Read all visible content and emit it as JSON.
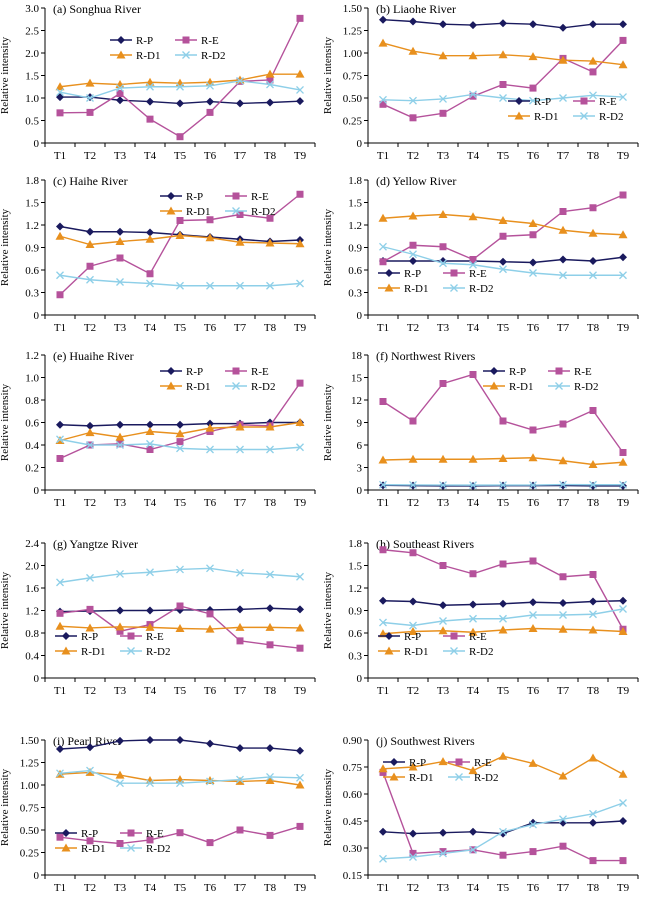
{
  "figure": {
    "ylabel": "Relative intensity",
    "categories": [
      "T1",
      "T2",
      "T3",
      "T4",
      "T5",
      "T6",
      "T7",
      "T8",
      "T9"
    ]
  },
  "colors": {
    "R-P": "#1a1a5e",
    "R-E": "#b5529b",
    "R-D1": "#e8901e",
    "R-D2": "#8ecfe8"
  },
  "chart_data": [
    {
      "type": "line",
      "title": "(a) Songhua River",
      "ylabel": "Relative intensity",
      "ylim": [
        0,
        3.0
      ],
      "yticks": [
        "0",
        "0.5",
        "1.0",
        "1.5",
        "2.0",
        "2.5",
        "3.0"
      ],
      "categories": [
        "T1",
        "T2",
        "T3",
        "T4",
        "T5",
        "T6",
        "T7",
        "T8",
        "T9"
      ],
      "legend": "top-center",
      "series": [
        {
          "name": "R-P",
          "values": [
            1.02,
            1.02,
            0.95,
            0.92,
            0.88,
            0.92,
            0.88,
            0.9,
            0.93
          ]
        },
        {
          "name": "R-E",
          "values": [
            0.67,
            0.68,
            1.1,
            0.53,
            0.14,
            0.68,
            1.37,
            1.4,
            2.77
          ]
        },
        {
          "name": "R-D1",
          "values": [
            1.25,
            1.33,
            1.3,
            1.35,
            1.33,
            1.35,
            1.4,
            1.53,
            1.53
          ]
        },
        {
          "name": "R-D2",
          "values": [
            1.13,
            1.0,
            1.22,
            1.25,
            1.25,
            1.27,
            1.38,
            1.3,
            1.18
          ]
        }
      ]
    },
    {
      "type": "line",
      "title": "(b) Liaohe River",
      "ylabel": "Relative intensity",
      "ylim": [
        0,
        1.5
      ],
      "yticks": [
        "0",
        "0.25",
        "0.50",
        "0.75",
        "1.00",
        "1.25",
        "1.50"
      ],
      "categories": [
        "T1",
        "T2",
        "T3",
        "T4",
        "T5",
        "T6",
        "T7",
        "T8",
        "T9"
      ],
      "legend": "bottom-right",
      "series": [
        {
          "name": "R-P",
          "values": [
            1.37,
            1.35,
            1.32,
            1.31,
            1.33,
            1.32,
            1.28,
            1.32,
            1.32
          ]
        },
        {
          "name": "R-E",
          "values": [
            0.43,
            0.28,
            0.33,
            0.52,
            0.65,
            0.61,
            0.94,
            0.79,
            1.14
          ]
        },
        {
          "name": "R-D1",
          "values": [
            1.11,
            1.02,
            0.97,
            0.97,
            0.98,
            0.96,
            0.92,
            0.91,
            0.87
          ]
        },
        {
          "name": "R-D2",
          "values": [
            0.48,
            0.47,
            0.49,
            0.54,
            0.5,
            0.47,
            0.5,
            0.53,
            0.51
          ]
        }
      ]
    },
    {
      "type": "line",
      "title": "(c) Haihe River",
      "ylabel": "Relative intensity",
      "ylim": [
        0,
        1.8
      ],
      "yticks": [
        "0",
        "0.3",
        "0.6",
        "0.9",
        "1.2",
        "1.5",
        "1.8"
      ],
      "categories": [
        "T1",
        "T2",
        "T3",
        "T4",
        "T5",
        "T6",
        "T7",
        "T8",
        "T9"
      ],
      "legend": "top-right",
      "series": [
        {
          "name": "R-P",
          "values": [
            1.18,
            1.11,
            1.11,
            1.1,
            1.07,
            1.04,
            1.01,
            0.98,
            1.0
          ]
        },
        {
          "name": "R-E",
          "values": [
            0.27,
            0.65,
            0.76,
            0.55,
            1.26,
            1.27,
            1.34,
            1.29,
            1.61
          ]
        },
        {
          "name": "R-D1",
          "values": [
            1.05,
            0.94,
            0.98,
            1.01,
            1.06,
            1.03,
            0.97,
            0.96,
            0.95
          ]
        },
        {
          "name": "R-D2",
          "values": [
            0.53,
            0.47,
            0.44,
            0.42,
            0.39,
            0.39,
            0.39,
            0.39,
            0.42
          ]
        }
      ]
    },
    {
      "type": "line",
      "title": "(d) Yellow River",
      "ylabel": "Relative intensity",
      "ylim": [
        0,
        1.8
      ],
      "yticks": [
        "0",
        "0.3",
        "0.6",
        "0.9",
        "1.2",
        "1.5",
        "1.8"
      ],
      "categories": [
        "T1",
        "T2",
        "T3",
        "T4",
        "T5",
        "T6",
        "T7",
        "T8",
        "T9"
      ],
      "legend": "bottom-left",
      "series": [
        {
          "name": "R-P",
          "values": [
            0.72,
            0.72,
            0.72,
            0.72,
            0.71,
            0.7,
            0.74,
            0.72,
            0.77
          ]
        },
        {
          "name": "R-E",
          "values": [
            0.71,
            0.93,
            0.91,
            0.74,
            1.05,
            1.07,
            1.38,
            1.43,
            1.6
          ]
        },
        {
          "name": "R-D1",
          "values": [
            1.29,
            1.32,
            1.34,
            1.31,
            1.26,
            1.22,
            1.13,
            1.09,
            1.07
          ]
        },
        {
          "name": "R-D2",
          "values": [
            0.91,
            0.81,
            0.69,
            0.67,
            0.61,
            0.56,
            0.53,
            0.53,
            0.53
          ]
        }
      ]
    },
    {
      "type": "line",
      "title": "(e) Huaihe River",
      "ylabel": "Relative intensity",
      "ylim": [
        0,
        1.2
      ],
      "yticks": [
        "0",
        "0.2",
        "0.4",
        "0.6",
        "0.8",
        "1.0",
        "1.2"
      ],
      "categories": [
        "T1",
        "T2",
        "T3",
        "T4",
        "T5",
        "T6",
        "T7",
        "T8",
        "T9"
      ],
      "legend": "top-right",
      "series": [
        {
          "name": "R-P",
          "values": [
            0.58,
            0.57,
            0.58,
            0.58,
            0.58,
            0.59,
            0.59,
            0.6,
            0.6
          ]
        },
        {
          "name": "R-E",
          "values": [
            0.28,
            0.4,
            0.41,
            0.36,
            0.43,
            0.52,
            0.58,
            0.57,
            0.95
          ]
        },
        {
          "name": "R-D1",
          "values": [
            0.44,
            0.51,
            0.47,
            0.52,
            0.5,
            0.55,
            0.56,
            0.56,
            0.6
          ]
        },
        {
          "name": "R-D2",
          "values": [
            0.45,
            0.4,
            0.4,
            0.41,
            0.37,
            0.36,
            0.36,
            0.36,
            0.38
          ]
        }
      ]
    },
    {
      "type": "line",
      "title": "(f) Northwest Rivers",
      "ylabel": "Relative intensity",
      "ylim": [
        0,
        18
      ],
      "yticks": [
        "0",
        "3",
        "6",
        "9",
        "12",
        "15",
        "18"
      ],
      "categories": [
        "T1",
        "T2",
        "T3",
        "T4",
        "T5",
        "T6",
        "T7",
        "T8",
        "T9"
      ],
      "legend": "top-right",
      "series": [
        {
          "name": "R-P",
          "values": [
            0.62,
            0.58,
            0.55,
            0.54,
            0.58,
            0.58,
            0.6,
            0.55,
            0.55
          ]
        },
        {
          "name": "R-E",
          "values": [
            11.8,
            9.2,
            14.2,
            15.4,
            9.2,
            8.0,
            8.8,
            10.6,
            5.0
          ]
        },
        {
          "name": "R-D1",
          "values": [
            4.0,
            4.1,
            4.1,
            4.1,
            4.2,
            4.3,
            3.9,
            3.4,
            3.7
          ]
        },
        {
          "name": "R-D2",
          "values": [
            0.7,
            0.68,
            0.66,
            0.65,
            0.66,
            0.66,
            0.72,
            0.7,
            0.7
          ]
        }
      ]
    },
    {
      "type": "line",
      "title": "(g) Yangtze River",
      "ylabel": "Relative intensity",
      "ylim": [
        0,
        2.4
      ],
      "yticks": [
        "0",
        "0.4",
        "0.8",
        "1.2",
        "1.6",
        "2.0",
        "2.4"
      ],
      "categories": [
        "T1",
        "T2",
        "T3",
        "T4",
        "T5",
        "T6",
        "T7",
        "T8",
        "T9"
      ],
      "legend": "bottom-left",
      "series": [
        {
          "name": "R-P",
          "values": [
            1.18,
            1.19,
            1.2,
            1.2,
            1.21,
            1.21,
            1.22,
            1.24,
            1.22
          ]
        },
        {
          "name": "R-E",
          "values": [
            1.15,
            1.22,
            0.83,
            0.95,
            1.28,
            1.14,
            0.66,
            0.59,
            0.53
          ]
        },
        {
          "name": "R-D1",
          "values": [
            0.92,
            0.89,
            0.91,
            0.9,
            0.88,
            0.87,
            0.9,
            0.9,
            0.89
          ]
        },
        {
          "name": "R-D2",
          "values": [
            1.7,
            1.78,
            1.85,
            1.88,
            1.93,
            1.95,
            1.87,
            1.84,
            1.8
          ]
        }
      ]
    },
    {
      "type": "line",
      "title": "(h) Southeast Rivers",
      "ylabel": "Relative intensity",
      "ylim": [
        0,
        1.8
      ],
      "yticks": [
        "0",
        "0.3",
        "0.6",
        "0.9",
        "1.2",
        "1.5",
        "1.8"
      ],
      "categories": [
        "T1",
        "T2",
        "T3",
        "T4",
        "T5",
        "T6",
        "T7",
        "T8",
        "T9"
      ],
      "legend": "bottom-left",
      "series": [
        {
          "name": "R-P",
          "values": [
            1.03,
            1.02,
            0.97,
            0.98,
            0.99,
            1.01,
            1.0,
            1.02,
            1.03
          ]
        },
        {
          "name": "R-E",
          "values": [
            1.71,
            1.67,
            1.5,
            1.39,
            1.52,
            1.56,
            1.35,
            1.38,
            0.65
          ]
        },
        {
          "name": "R-D1",
          "values": [
            0.59,
            0.62,
            0.63,
            0.61,
            0.64,
            0.66,
            0.65,
            0.64,
            0.62
          ]
        },
        {
          "name": "R-D2",
          "values": [
            0.74,
            0.7,
            0.76,
            0.79,
            0.79,
            0.84,
            0.84,
            0.85,
            0.92
          ]
        }
      ]
    },
    {
      "type": "line",
      "title": "(i) Pearl River",
      "ylabel": "Relative intensity",
      "ylim": [
        0,
        1.5
      ],
      "yticks": [
        "0",
        "0.25",
        "0.50",
        "0.75",
        "1.00",
        "1.25",
        "1.50"
      ],
      "categories": [
        "T1",
        "T2",
        "T3",
        "T4",
        "T5",
        "T6",
        "T7",
        "T8",
        "T9"
      ],
      "legend": "bottom-left",
      "series": [
        {
          "name": "R-P",
          "values": [
            1.4,
            1.42,
            1.49,
            1.5,
            1.5,
            1.46,
            1.41,
            1.41,
            1.38
          ]
        },
        {
          "name": "R-E",
          "values": [
            0.42,
            0.38,
            0.35,
            0.39,
            0.47,
            0.36,
            0.5,
            0.44,
            0.54
          ]
        },
        {
          "name": "R-D1",
          "values": [
            1.12,
            1.14,
            1.11,
            1.05,
            1.06,
            1.05,
            1.04,
            1.05,
            1.0
          ]
        },
        {
          "name": "R-D2",
          "values": [
            1.13,
            1.16,
            1.02,
            1.02,
            1.02,
            1.04,
            1.06,
            1.09,
            1.08
          ]
        }
      ]
    },
    {
      "type": "line",
      "title": "(j) Southwest Rivers",
      "ylabel": "Relative intensity",
      "ylim": [
        0.15,
        0.9
      ],
      "yticks": [
        "0.15",
        "0.30",
        "0.45",
        "0.60",
        "0.75",
        "0.90"
      ],
      "categories": [
        "T1",
        "T2",
        "T3",
        "T4",
        "T5",
        "T6",
        "T7",
        "T8",
        "T9"
      ],
      "legend": "top-left",
      "series": [
        {
          "name": "R-P",
          "values": [
            0.39,
            0.38,
            0.385,
            0.39,
            0.38,
            0.44,
            0.44,
            0.44,
            0.45
          ]
        },
        {
          "name": "R-E",
          "values": [
            0.72,
            0.27,
            0.28,
            0.29,
            0.26,
            0.28,
            0.31,
            0.23,
            0.23
          ]
        },
        {
          "name": "R-D1",
          "values": [
            0.74,
            0.75,
            0.78,
            0.73,
            0.81,
            0.77,
            0.7,
            0.8,
            0.71
          ]
        },
        {
          "name": "R-D2",
          "values": [
            0.24,
            0.25,
            0.27,
            0.29,
            0.39,
            0.43,
            0.46,
            0.49,
            0.55
          ]
        }
      ]
    }
  ]
}
